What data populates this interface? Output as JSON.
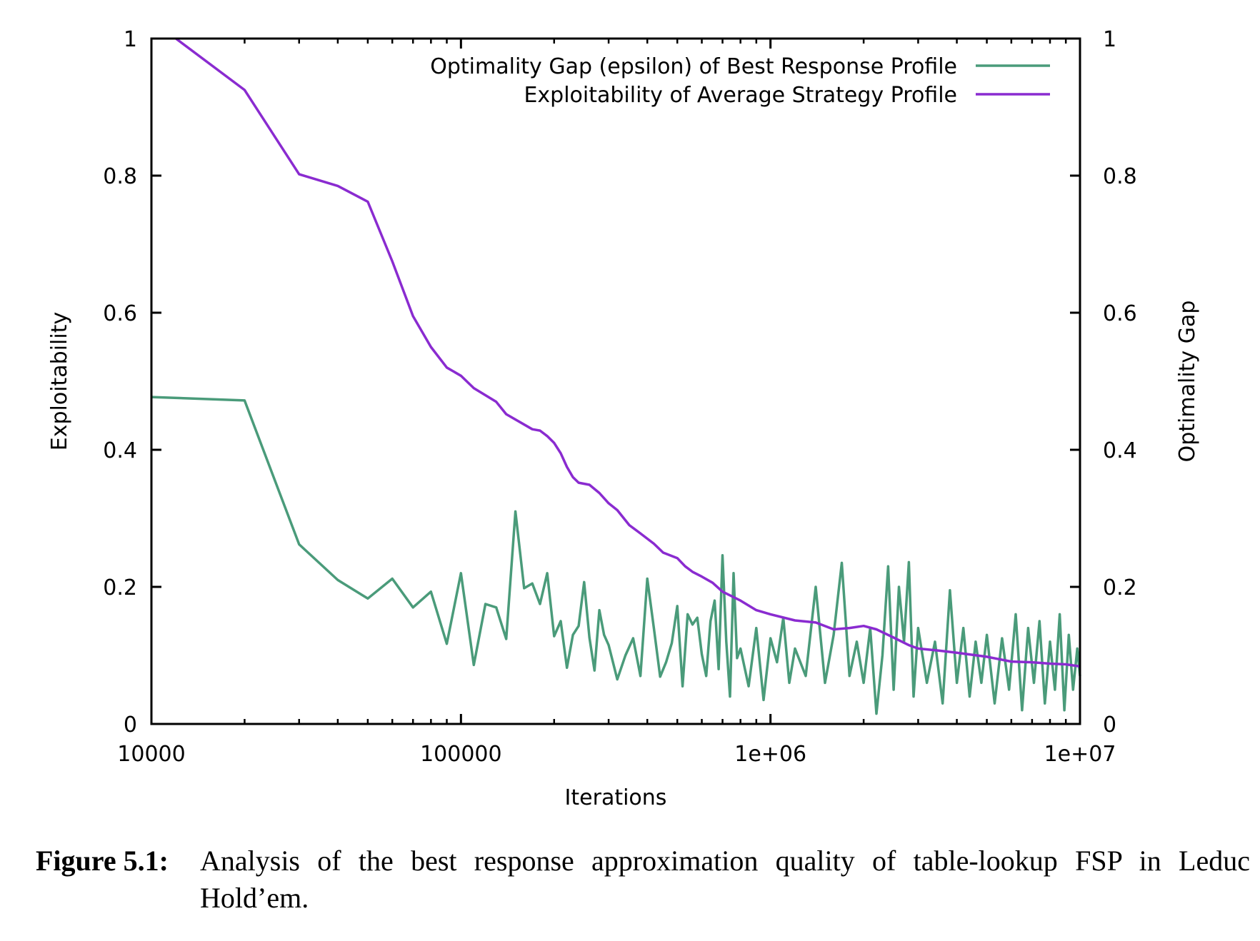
{
  "chart_data": {
    "type": "line",
    "xlabel": "Iterations",
    "ylabel": "Exploitability",
    "y2label": "Optimality Gap",
    "xscale": "log",
    "xlim": [
      10000,
      10000000
    ],
    "ylim": [
      0,
      1
    ],
    "y2lim": [
      0,
      1
    ],
    "x_ticks": [
      "10000",
      "100000",
      "1e+06",
      "1e+07"
    ],
    "y_ticks": [
      "0",
      "0.2",
      "0.4",
      "0.6",
      "0.8",
      "1"
    ],
    "y2_ticks": [
      "0",
      "0.2",
      "0.4",
      "0.6",
      "0.8",
      "1"
    ],
    "grid": false,
    "legend_position": "top-right",
    "series": [
      {
        "name": "Optimality Gap (epsilon) of Best Response Profile",
        "color": "#4a9b7a",
        "points": [
          [
            10000,
            0.477
          ],
          [
            20000,
            0.472
          ],
          [
            30000,
            0.262
          ],
          [
            40000,
            0.21
          ],
          [
            50000,
            0.183
          ],
          [
            60000,
            0.212
          ],
          [
            70000,
            0.17
          ],
          [
            80000,
            0.193
          ],
          [
            90000,
            0.117
          ],
          [
            100000,
            0.22
          ],
          [
            110000,
            0.086
          ],
          [
            120000,
            0.175
          ],
          [
            130000,
            0.17
          ],
          [
            140000,
            0.124
          ],
          [
            150000,
            0.31
          ],
          [
            160000,
            0.198
          ],
          [
            170000,
            0.205
          ],
          [
            180000,
            0.175
          ],
          [
            190000,
            0.22
          ],
          [
            200000,
            0.128
          ],
          [
            210000,
            0.15
          ],
          [
            220000,
            0.082
          ],
          [
            230000,
            0.13
          ],
          [
            240000,
            0.143
          ],
          [
            250000,
            0.207
          ],
          [
            260000,
            0.126
          ],
          [
            270000,
            0.078
          ],
          [
            280000,
            0.166
          ],
          [
            290000,
            0.13
          ],
          [
            300000,
            0.115
          ],
          [
            320000,
            0.065
          ],
          [
            340000,
            0.1
          ],
          [
            360000,
            0.125
          ],
          [
            380000,
            0.07
          ],
          [
            400000,
            0.212
          ],
          [
            420000,
            0.14
          ],
          [
            440000,
            0.069
          ],
          [
            460000,
            0.09
          ],
          [
            480000,
            0.118
          ],
          [
            500000,
            0.172
          ],
          [
            520000,
            0.055
          ],
          [
            540000,
            0.16
          ],
          [
            560000,
            0.145
          ],
          [
            580000,
            0.155
          ],
          [
            600000,
            0.102
          ],
          [
            620000,
            0.07
          ],
          [
            640000,
            0.15
          ],
          [
            660000,
            0.18
          ],
          [
            680000,
            0.08
          ],
          [
            700000,
            0.246
          ],
          [
            720000,
            0.12
          ],
          [
            740000,
            0.04
          ],
          [
            760000,
            0.22
          ],
          [
            780000,
            0.096
          ],
          [
            800000,
            0.11
          ],
          [
            850000,
            0.055
          ],
          [
            900000,
            0.14
          ],
          [
            950000,
            0.035
          ],
          [
            1000000,
            0.125
          ],
          [
            1050000,
            0.09
          ],
          [
            1100000,
            0.155
          ],
          [
            1150000,
            0.06
          ],
          [
            1200000,
            0.11
          ],
          [
            1300000,
            0.07
          ],
          [
            1400000,
            0.2
          ],
          [
            1500000,
            0.06
          ],
          [
            1600000,
            0.13
          ],
          [
            1700000,
            0.235
          ],
          [
            1800000,
            0.07
          ],
          [
            1900000,
            0.12
          ],
          [
            2000000,
            0.06
          ],
          [
            2100000,
            0.14
          ],
          [
            2200000,
            0.015
          ],
          [
            2300000,
            0.1
          ],
          [
            2400000,
            0.23
          ],
          [
            2500000,
            0.05
          ],
          [
            2600000,
            0.2
          ],
          [
            2700000,
            0.12
          ],
          [
            2800000,
            0.236
          ],
          [
            2900000,
            0.04
          ],
          [
            3000000,
            0.14
          ],
          [
            3200000,
            0.06
          ],
          [
            3400000,
            0.12
          ],
          [
            3600000,
            0.03
          ],
          [
            3800000,
            0.195
          ],
          [
            4000000,
            0.06
          ],
          [
            4200000,
            0.14
          ],
          [
            4400000,
            0.04
          ],
          [
            4600000,
            0.12
          ],
          [
            4800000,
            0.06
          ],
          [
            5000000,
            0.13
          ],
          [
            5300000,
            0.03
          ],
          [
            5600000,
            0.125
          ],
          [
            5900000,
            0.05
          ],
          [
            6200000,
            0.16
          ],
          [
            6500000,
            0.02
          ],
          [
            6800000,
            0.14
          ],
          [
            7100000,
            0.06
          ],
          [
            7400000,
            0.15
          ],
          [
            7700000,
            0.03
          ],
          [
            8000000,
            0.12
          ],
          [
            8300000,
            0.05
          ],
          [
            8600000,
            0.16
          ],
          [
            8900000,
            0.02
          ],
          [
            9200000,
            0.13
          ],
          [
            9500000,
            0.05
          ],
          [
            9800000,
            0.11
          ],
          [
            10000000,
            0.07
          ]
        ]
      },
      {
        "name": "Exploitability of Average Strategy Profile",
        "color": "#8a2bd0",
        "points": [
          [
            12000,
            1.0
          ],
          [
            20000,
            0.925
          ],
          [
            30000,
            0.802
          ],
          [
            40000,
            0.785
          ],
          [
            50000,
            0.762
          ],
          [
            60000,
            0.675
          ],
          [
            70000,
            0.595
          ],
          [
            80000,
            0.55
          ],
          [
            90000,
            0.52
          ],
          [
            100000,
            0.508
          ],
          [
            110000,
            0.49
          ],
          [
            130000,
            0.47
          ],
          [
            140000,
            0.452
          ],
          [
            170000,
            0.43
          ],
          [
            180000,
            0.428
          ],
          [
            190000,
            0.42
          ],
          [
            200000,
            0.41
          ],
          [
            210000,
            0.395
          ],
          [
            220000,
            0.375
          ],
          [
            230000,
            0.36
          ],
          [
            240000,
            0.352
          ],
          [
            260000,
            0.349
          ],
          [
            280000,
            0.337
          ],
          [
            300000,
            0.322
          ],
          [
            320000,
            0.312
          ],
          [
            350000,
            0.29
          ],
          [
            380000,
            0.278
          ],
          [
            420000,
            0.263
          ],
          [
            450000,
            0.25
          ],
          [
            500000,
            0.242
          ],
          [
            530000,
            0.23
          ],
          [
            560000,
            0.222
          ],
          [
            600000,
            0.215
          ],
          [
            650000,
            0.206
          ],
          [
            700000,
            0.193
          ],
          [
            800000,
            0.18
          ],
          [
            900000,
            0.166
          ],
          [
            1000000,
            0.16
          ],
          [
            1200000,
            0.151
          ],
          [
            1400000,
            0.148
          ],
          [
            1600000,
            0.138
          ],
          [
            1800000,
            0.14
          ],
          [
            2000000,
            0.143
          ],
          [
            2200000,
            0.138
          ],
          [
            2500000,
            0.126
          ],
          [
            2800000,
            0.115
          ],
          [
            3000000,
            0.11
          ],
          [
            3500000,
            0.107
          ],
          [
            4000000,
            0.104
          ],
          [
            5000000,
            0.098
          ],
          [
            6000000,
            0.091
          ],
          [
            7000000,
            0.09
          ],
          [
            8000000,
            0.088
          ],
          [
            9000000,
            0.087
          ],
          [
            10000000,
            0.084
          ]
        ]
      }
    ]
  },
  "caption": {
    "label": "Figure 5.1:",
    "text": "Analysis of the best response approximation quality of table-lookup FSP in Leduc Hold’em."
  }
}
